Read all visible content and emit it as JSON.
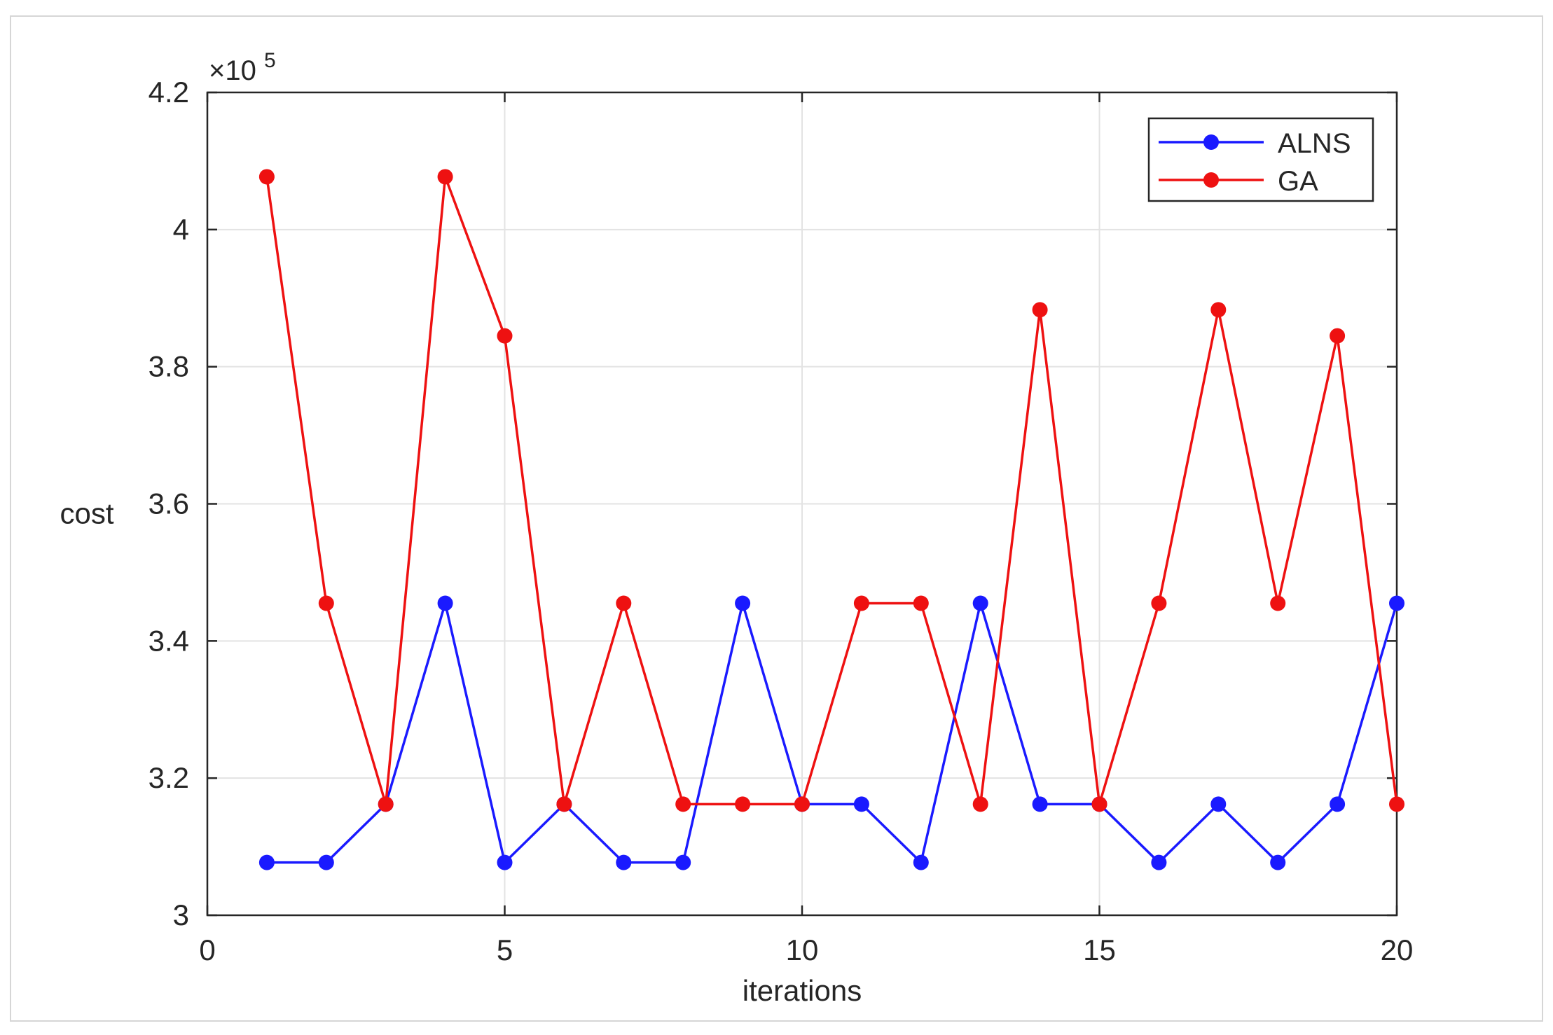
{
  "chart_data": {
    "type": "line",
    "title": "",
    "xlabel": "iterations",
    "ylabel": "cost",
    "y_multiplier_label": "×10",
    "y_multiplier_exponent": "5",
    "xlim": [
      0,
      20
    ],
    "ylim": [
      3,
      4.2
    ],
    "x_ticks": [
      0,
      5,
      10,
      15,
      20
    ],
    "y_ticks": [
      3,
      3.2,
      3.4,
      3.6,
      3.8,
      4,
      4.2
    ],
    "x_tick_labels": [
      "0",
      "5",
      "10",
      "15",
      "20"
    ],
    "y_tick_labels": [
      "3",
      "3.2",
      "3.4",
      "3.6",
      "3.8",
      "4",
      "4.2"
    ],
    "grid": true,
    "legend_position": "top-right",
    "x": [
      1,
      2,
      3,
      4,
      5,
      6,
      7,
      8,
      9,
      10,
      11,
      12,
      13,
      14,
      15,
      16,
      17,
      18,
      19,
      20
    ],
    "series": [
      {
        "name": "ALNS",
        "color": "#1a1aff",
        "values": [
          3.077,
          3.077,
          3.162,
          3.455,
          3.077,
          3.162,
          3.077,
          3.077,
          3.455,
          3.162,
          3.162,
          3.077,
          3.455,
          3.162,
          3.162,
          3.077,
          3.162,
          3.077,
          3.162,
          3.455
        ]
      },
      {
        "name": "GA",
        "color": "#ee1111",
        "values": [
          4.077,
          3.455,
          3.162,
          4.077,
          3.845,
          3.162,
          3.455,
          3.162,
          3.162,
          3.162,
          3.455,
          3.455,
          3.162,
          3.883,
          3.162,
          3.455,
          3.883,
          3.455,
          3.845,
          3.162
        ]
      }
    ]
  }
}
